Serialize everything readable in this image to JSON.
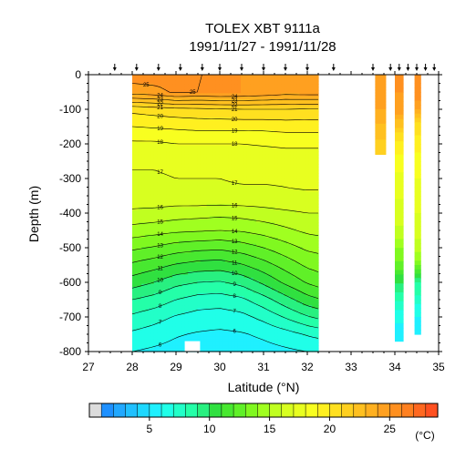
{
  "chart_data": {
    "type": "heatmap",
    "title": "TOLEX XBT 9111a",
    "subtitle": "1991/11/27 - 1991/11/28",
    "xlabel": "Latitude (°N)",
    "ylabel": "Depth (m)",
    "xlim": [
      27,
      35
    ],
    "ylim": [
      -800,
      0
    ],
    "x_ticks": [
      27,
      28,
      29,
      30,
      31,
      32,
      33,
      34,
      35
    ],
    "y_ticks": [
      0,
      -100,
      -200,
      -300,
      -400,
      -500,
      -600,
      -700,
      -800
    ],
    "cast_latitudes": [
      27.6,
      28.1,
      28.6,
      29.1,
      29.6,
      30.0,
      30.5,
      31.0,
      31.5,
      32.0,
      32.6,
      33.5,
      33.9,
      34.1,
      34.3,
      34.5,
      34.7,
      34.9
    ],
    "colorbar": {
      "min": 1,
      "max": 29,
      "step": 1,
      "tick_values": [
        5,
        10,
        15,
        20,
        25
      ],
      "unit": "(°C)",
      "colors": [
        "#dcdcdc",
        "#1e90ff",
        "#21a8ff",
        "#20c0ff",
        "#1ed8ff",
        "#1ff0ff",
        "#20ffe8",
        "#22ffc8",
        "#24ffa8",
        "#28f080",
        "#30e040",
        "#48e830",
        "#60f028",
        "#80f820",
        "#a0ff20",
        "#c0ff20",
        "#d8ff20",
        "#e8ff20",
        "#f8ff20",
        "#fff020",
        "#ffe020",
        "#ffd020",
        "#ffc020",
        "#ffb020",
        "#ffa020",
        "#ff9020",
        "#ff8020",
        "#ff6820",
        "#ff5020"
      ]
    },
    "temperature_field": {
      "interpolated_section": {
        "lat_range": [
          28.0,
          32.25
        ],
        "min_depth": 760,
        "profile_latitudes": [
          28.0,
          28.5,
          29.0,
          29.5,
          30.0,
          30.5,
          31.0,
          31.5,
          32.0,
          32.25
        ],
        "depth_levels": [
          0,
          50,
          100,
          150,
          200,
          250,
          300,
          350,
          400,
          450,
          500,
          550,
          600,
          650,
          700,
          750,
          800
        ],
        "values": [
          [
            25.5,
            25.5,
            25.2,
            25.0,
            25.0,
            25.0,
            24.8,
            24.6,
            24.6,
            24.6
          ],
          [
            24.5,
            24.7,
            25.2,
            25.0,
            25.1,
            25.0,
            24.8,
            24.5,
            24.6,
            24.6
          ],
          [
            20.3,
            20.5,
            20.7,
            20.8,
            20.9,
            21.0,
            21.0,
            21.0,
            20.9,
            20.9
          ],
          [
            19.0,
            19.1,
            19.2,
            19.3,
            19.3,
            19.3,
            19.3,
            19.4,
            19.4,
            19.4
          ],
          [
            17.8,
            17.8,
            18.0,
            18.0,
            18.0,
            18.0,
            18.1,
            18.2,
            18.2,
            18.2
          ],
          [
            17.1,
            17.1,
            17.2,
            17.2,
            17.3,
            17.3,
            17.3,
            17.4,
            17.4,
            17.4
          ],
          [
            16.9,
            16.9,
            17.0,
            17.0,
            17.0,
            17.1,
            17.1,
            17.1,
            17.2,
            17.2
          ],
          [
            16.6,
            16.7,
            16.7,
            16.8,
            16.8,
            16.8,
            16.8,
            16.9,
            16.9,
            16.9
          ],
          [
            15.8,
            15.7,
            15.5,
            15.4,
            15.3,
            15.4,
            15.6,
            15.8,
            16.0,
            16.0
          ],
          [
            14.6,
            14.4,
            14.2,
            14.1,
            14.0,
            14.1,
            14.4,
            14.8,
            15.2,
            15.3
          ],
          [
            13.2,
            12.9,
            12.5,
            12.3,
            12.2,
            12.5,
            13.0,
            13.6,
            14.2,
            14.3
          ],
          [
            11.8,
            11.4,
            10.9,
            10.6,
            10.5,
            10.9,
            11.6,
            12.4,
            13.2,
            13.4
          ],
          [
            10.5,
            10.0,
            9.3,
            9.0,
            8.9,
            9.3,
            10.2,
            11.2,
            12.1,
            12.4
          ],
          [
            9.0,
            8.6,
            8.0,
            7.6,
            7.5,
            7.8,
            8.6,
            9.6,
            10.6,
            10.9
          ],
          [
            7.8,
            7.4,
            6.9,
            6.6,
            6.5,
            6.7,
            7.3,
            8.1,
            8.9,
            9.2
          ],
          [
            6.8,
            6.5,
            6.1,
            5.9,
            5.8,
            5.9,
            6.2,
            6.6,
            7.1,
            7.3
          ],
          [
            6.0,
            5.8,
            5.6,
            5.4,
            5.3,
            5.4,
            5.6,
            5.8,
            6.0,
            6.0
          ]
        ]
      },
      "isolated_profiles": [
        {
          "lat_range": [
            33.55,
            33.8
          ],
          "max_depth": 230,
          "depth_levels": [
            0,
            100,
            230
          ],
          "values": [
            25.0,
            24.0,
            21.0
          ]
        },
        {
          "lat_range": [
            34.0,
            34.2
          ],
          "max_depth": 770,
          "depth_levels": [
            0,
            100,
            200,
            300,
            400,
            450,
            500,
            550,
            600,
            650,
            700,
            770
          ],
          "values": [
            25.5,
            24.5,
            19.5,
            17.8,
            16.5,
            15.8,
            14.2,
            12.5,
            10.0,
            8.0,
            6.5,
            5.0
          ]
        },
        {
          "lat_range": [
            34.45,
            34.6
          ],
          "max_depth": 750,
          "depth_levels": [
            0,
            80,
            150,
            250,
            350,
            450,
            500,
            550,
            600,
            700,
            750
          ],
          "values": [
            25.8,
            25.0,
            20.5,
            18.5,
            17.5,
            16.5,
            15.5,
            13.5,
            9.0,
            6.0,
            5.0
          ]
        }
      ]
    },
    "contour_levels": [
      6,
      7,
      8,
      9,
      10,
      11,
      12,
      13,
      14,
      15,
      16,
      17,
      18,
      19,
      20,
      21,
      22,
      23,
      24,
      25
    ]
  }
}
